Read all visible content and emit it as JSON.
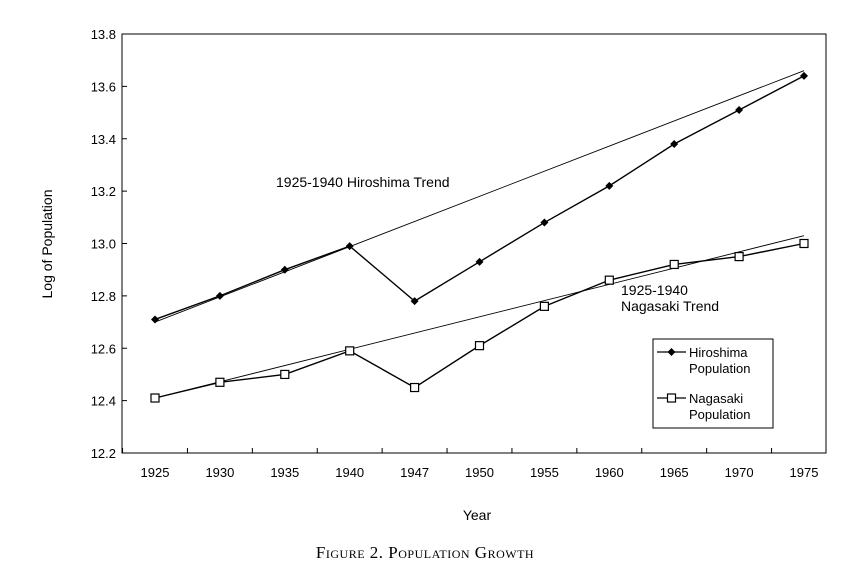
{
  "caption": "Figure 2. Population Growth",
  "chart_data": {
    "type": "line",
    "title": "",
    "xlabel": "Year",
    "ylabel": "Log of Population",
    "categories": [
      "1925",
      "1930",
      "1935",
      "1940",
      "1947",
      "1950",
      "1955",
      "1960",
      "1965",
      "1970",
      "1975"
    ],
    "ylim": [
      12.2,
      13.8
    ],
    "yticks": [
      "12.2",
      "12.4",
      "12.6",
      "12.8",
      "13.0",
      "13.2",
      "13.4",
      "13.6",
      "13.8"
    ],
    "grid": false,
    "legend_position": "right",
    "series": [
      {
        "name": "Hiroshima Population",
        "legend_lines": [
          "Hiroshima",
          "Population"
        ],
        "marker": "filled-diamond",
        "values": [
          12.71,
          12.8,
          12.9,
          12.99,
          12.78,
          12.93,
          13.08,
          13.22,
          13.38,
          13.51,
          13.64
        ]
      },
      {
        "name": "Nagasaki Population",
        "legend_lines": [
          "Nagasaki",
          "Population"
        ],
        "marker": "open-square",
        "values": [
          12.41,
          12.47,
          12.5,
          12.59,
          12.45,
          12.61,
          12.76,
          12.86,
          12.92,
          12.95,
          13.0
        ]
      }
    ],
    "trend_lines": [
      {
        "name": "1925-1940 Hiroshima Trend",
        "label_lines": [
          "1925-1940 Hiroshima Trend"
        ],
        "start": {
          "x": "1925",
          "y": 12.7
        },
        "end": {
          "x": "1975",
          "y": 13.66
        }
      },
      {
        "name": "1925-1940 Nagasaki Trend",
        "label_lines": [
          "1925-1940",
          "Nagasaki Trend"
        ],
        "start": {
          "x": "1925",
          "y": 12.41
        },
        "end": {
          "x": "1975",
          "y": 13.03
        }
      }
    ]
  }
}
